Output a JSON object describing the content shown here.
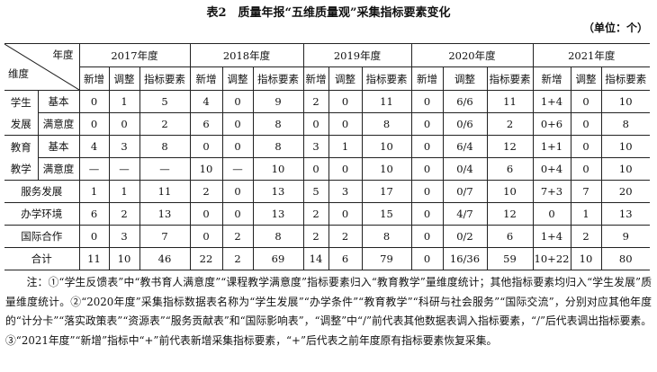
{
  "title": "表2　质量年报“五维质量观”采集指标要素变化",
  "unit": "（单位：个）",
  "header": {
    "corner_year": "年度",
    "corner_dim": "维度",
    "years": [
      "2017年度",
      "2018年度",
      "2019年度",
      "2020年度",
      "2021年度"
    ],
    "sub": [
      "新增",
      "调整",
      "指标要素"
    ]
  },
  "rows": [
    {
      "group": "学生\n发展",
      "label": "基本",
      "cells": [
        "0",
        "1",
        "5",
        "4",
        "0",
        "9",
        "2",
        "0",
        "11",
        "0",
        "6/6",
        "11",
        "1+4",
        "0",
        "10"
      ]
    },
    {
      "label": "满意度",
      "cells": [
        "0",
        "0",
        "2",
        "6",
        "0",
        "8",
        "0",
        "0",
        "8",
        "0",
        "0/6",
        "2",
        "0+6",
        "0",
        "8"
      ]
    },
    {
      "group": "教育\n教学",
      "label": "基本",
      "cells": [
        "4",
        "3",
        "8",
        "0",
        "0",
        "8",
        "3",
        "1",
        "10",
        "0",
        "6/4",
        "12",
        "1+1",
        "0",
        "10"
      ]
    },
    {
      "label": "满意度",
      "cells": [
        "—",
        "—",
        "—",
        "10",
        "—",
        "10",
        "0",
        "0",
        "10",
        "0",
        "0/4",
        "6",
        "0+4",
        "0",
        "10"
      ]
    },
    {
      "label": "服务发展",
      "cells": [
        "1",
        "1",
        "11",
        "2",
        "0",
        "13",
        "5",
        "3",
        "17",
        "0",
        "0/7",
        "10",
        "7+3",
        "7",
        "20"
      ]
    },
    {
      "label": "办学环境",
      "cells": [
        "6",
        "2",
        "13",
        "0",
        "0",
        "13",
        "2",
        "0",
        "15",
        "0",
        "4/7",
        "12",
        "0",
        "1",
        "13"
      ]
    },
    {
      "label": "国际合作",
      "cells": [
        "0",
        "3",
        "7",
        "0",
        "2",
        "8",
        "2",
        "2",
        "8",
        "0",
        "0/2",
        "6",
        "1+4",
        "2",
        "9"
      ]
    },
    {
      "label": "合计",
      "cells": [
        "11",
        "10",
        "46",
        "22",
        "2",
        "69",
        "14",
        "6",
        "79",
        "0",
        "16/36",
        "59",
        "10+22",
        "10",
        "80"
      ]
    }
  ],
  "note": "注：①“学生反馈表”中“教书育人满意度”“课程教学满意度”指标要素归入“教育教学”量维度统计；其他指标要素均归入“学生发展”质量维度统计。②“2020年度”采集指标数据表名称为“学生发展”“办学条件”“教育教学”“科研与社会服务”“国际交流”，分别对应其他年度的“计分卡”“落实政策表”“资源表”“服务贡献表”和“国际影响表”，“调整”中“/”前代表其他数据表调入指标要素，“/”后代表调出指标要素。③“2021年度”“新增”指标中“+”前代表新增采集指标要素，“+”后代表之前年度原有指标要素恢复采集。"
}
